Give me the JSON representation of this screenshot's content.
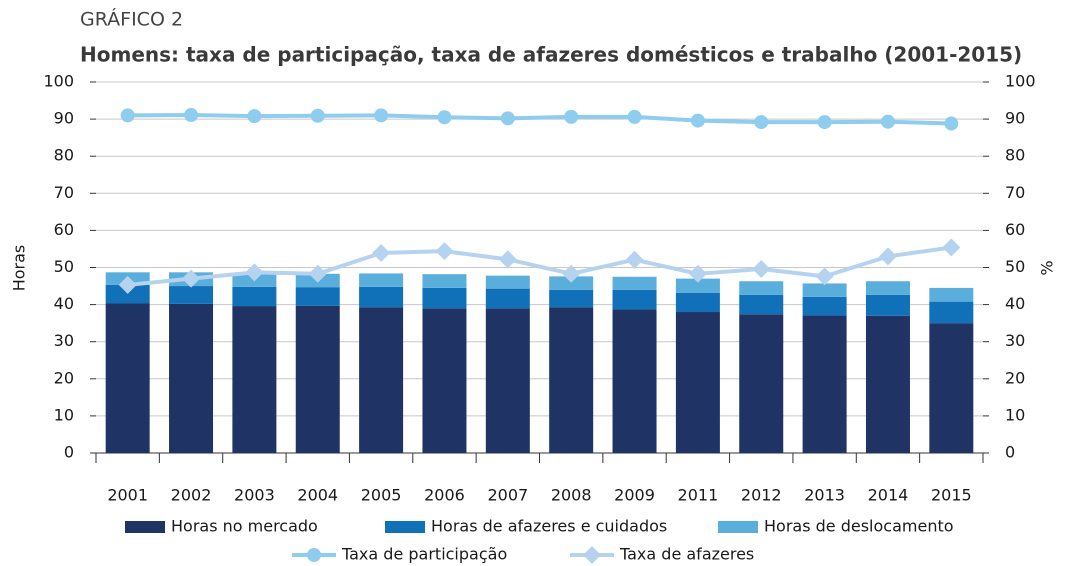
{
  "chart_data": {
    "type": "bar+line",
    "supertitle": "GRÁFICO 2",
    "title": "Homens: taxa de participação, taxa de afazeres domésticos e trabalho (2001-2015)",
    "y_label": "Horas",
    "y2_label": "%",
    "categories": [
      "2001",
      "2002",
      "2003",
      "2004",
      "2005",
      "2006",
      "2007",
      "2008",
      "2009",
      "2011",
      "2012",
      "2013",
      "2014",
      "2015"
    ],
    "ylim": [
      0,
      100
    ],
    "yticks": [
      0,
      10,
      20,
      30,
      40,
      50,
      60,
      70,
      80,
      90,
      100
    ],
    "y2lim": [
      0,
      100
    ],
    "y2ticks": [
      0,
      10,
      20,
      30,
      40,
      50,
      60,
      70,
      80,
      90,
      100
    ],
    "grid": true,
    "series": [
      {
        "name": "Horas no mercado",
        "type": "bar",
        "color": "#1f3464",
        "values": [
          40.3,
          40.2,
          39.6,
          39.7,
          39.3,
          39.0,
          39.0,
          39.3,
          38.7,
          38.0,
          37.4,
          37.1,
          37.0,
          35.0
        ]
      },
      {
        "name": "Horas de afazeres e cuidados",
        "type": "bar",
        "color": "#1070b8",
        "values": [
          5.0,
          4.8,
          5.2,
          5.0,
          5.5,
          5.5,
          5.3,
          4.7,
          5.3,
          5.2,
          5.2,
          5.0,
          5.6,
          5.8
        ]
      },
      {
        "name": "Horas de deslocamento",
        "type": "bar",
        "color": "#5aaedb",
        "values": [
          3.4,
          3.7,
          3.4,
          3.6,
          3.6,
          3.7,
          3.5,
          3.6,
          3.5,
          3.8,
          3.7,
          3.6,
          3.7,
          3.7
        ]
      },
      {
        "name": "Taxa de participação",
        "type": "line",
        "axis": "y2",
        "marker": "circle",
        "color": "#8fcdef",
        "values": [
          91.0,
          91.1,
          90.8,
          90.9,
          91.0,
          90.5,
          90.2,
          90.6,
          90.6,
          89.6,
          89.2,
          89.2,
          89.3,
          88.8
        ]
      },
      {
        "name": "Taxa de afazeres",
        "type": "line",
        "axis": "y2",
        "marker": "diamond",
        "color": "#b5d3ef",
        "values": [
          45.3,
          47.0,
          48.7,
          48.3,
          53.9,
          54.4,
          52.2,
          48.3,
          52.1,
          48.3,
          49.6,
          47.6,
          53.0,
          55.4
        ]
      }
    ]
  }
}
